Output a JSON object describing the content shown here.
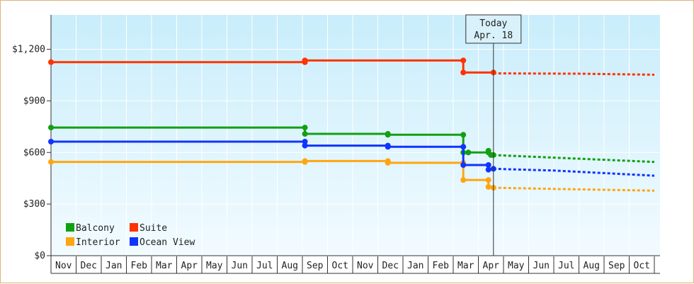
{
  "chart_data": {
    "type": "line",
    "title": "",
    "xlabel": "",
    "ylabel": "",
    "ylim": [
      0,
      1400
    ],
    "y_ticks": [
      {
        "value": 0,
        "label": "$0"
      },
      {
        "value": 300,
        "label": "$300"
      },
      {
        "value": 600,
        "label": "$600"
      },
      {
        "value": 900,
        "label": "$900"
      },
      {
        "value": 1200,
        "label": "$1,200"
      }
    ],
    "x_months": [
      "Nov",
      "Dec",
      "Jan",
      "Feb",
      "Mar",
      "Apr",
      "May",
      "Jun",
      "Jul",
      "Aug",
      "Sep",
      "Oct",
      "Nov",
      "Dec",
      "Jan",
      "Feb",
      "Mar",
      "Apr",
      "May",
      "Jun",
      "Jul",
      "Aug",
      "Sep",
      "Oct"
    ],
    "today": {
      "line1": "Today",
      "line2": "Apr. 18",
      "x": 17.6
    },
    "grid": true,
    "legend_position": "bottom-left",
    "series": [
      {
        "name": "Balcony",
        "color": "#11a011",
        "points": [
          [
            0,
            745
          ],
          [
            10.1,
            745
          ],
          [
            10.1,
            708
          ],
          [
            13.4,
            708
          ],
          [
            13.4,
            703
          ],
          [
            16.4,
            703
          ],
          [
            16.4,
            600
          ],
          [
            16.6,
            600
          ],
          [
            16.6,
            600
          ],
          [
            17.4,
            600
          ],
          [
            17.4,
            610
          ],
          [
            17.5,
            585
          ],
          [
            17.6,
            585
          ]
        ],
        "forecast": [
          [
            17.6,
            585
          ],
          [
            20,
            570
          ],
          [
            24,
            545
          ]
        ]
      },
      {
        "name": "Suite",
        "color": "#ff3300",
        "points": [
          [
            0,
            1125
          ],
          [
            10.1,
            1125
          ],
          [
            10.1,
            1135
          ],
          [
            16.4,
            1135
          ],
          [
            16.4,
            1065
          ],
          [
            17.6,
            1065
          ]
        ],
        "forecast": [
          [
            17.6,
            1060
          ],
          [
            21,
            1058
          ],
          [
            24,
            1052
          ]
        ]
      },
      {
        "name": "Interior",
        "color": "#ffa510",
        "points": [
          [
            0,
            545
          ],
          [
            10.1,
            545
          ],
          [
            10.1,
            550
          ],
          [
            13.4,
            550
          ],
          [
            13.4,
            540
          ],
          [
            16.4,
            540
          ],
          [
            16.4,
            440
          ],
          [
            17.4,
            440
          ],
          [
            17.4,
            400
          ],
          [
            17.6,
            395
          ]
        ],
        "forecast": [
          [
            17.6,
            395
          ],
          [
            20,
            388
          ],
          [
            24,
            378
          ]
        ]
      },
      {
        "name": "Ocean View",
        "color": "#1133ff",
        "points": [
          [
            0,
            663
          ],
          [
            10.1,
            663
          ],
          [
            10.1,
            640
          ],
          [
            13.4,
            640
          ],
          [
            13.4,
            633
          ],
          [
            16.4,
            633
          ],
          [
            16.4,
            527
          ],
          [
            17.4,
            527
          ],
          [
            17.4,
            500
          ],
          [
            17.6,
            505
          ]
        ],
        "forecast": [
          [
            17.6,
            505
          ],
          [
            20,
            495
          ],
          [
            24,
            465
          ]
        ]
      }
    ]
  }
}
